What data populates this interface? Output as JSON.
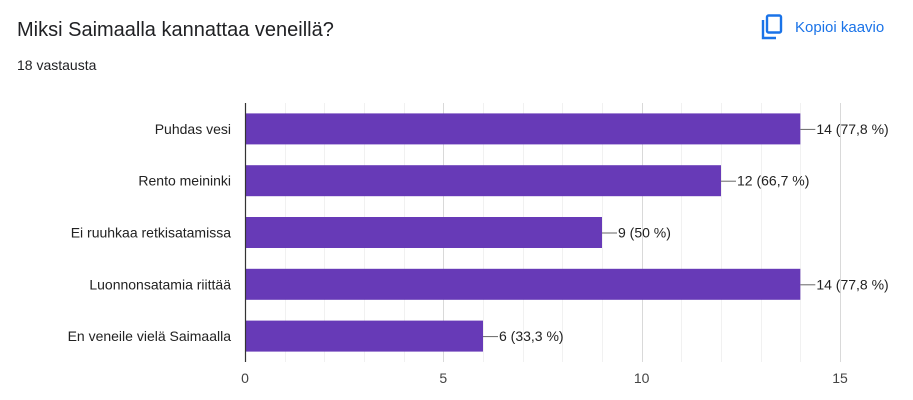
{
  "header": {
    "title": "Miksi Saimaalla kannattaa veneillä?",
    "responses": "18 vastausta",
    "copy_label": "Kopioi kaavio"
  },
  "colors": {
    "bar": "#673ab7",
    "accent": "#1a73e8",
    "grid": "#e6e6e6",
    "axis": "#333333"
  },
  "chart_data": {
    "type": "bar",
    "orientation": "horizontal",
    "categories": [
      "Puhdas vesi",
      "Rento meininki",
      "Ei ruuhkaa retkisatamissa",
      "Luonnonsatamia riittää",
      "En veneile vielä Saimaalla"
    ],
    "values": [
      14,
      12,
      9,
      14,
      6
    ],
    "data_labels": [
      "14 (77,8 %)",
      "12 (66,7 %)",
      "9 (50 %)",
      "14 (77,8 %)",
      "6 (33,3 %)"
    ],
    "xlim": [
      0,
      15
    ],
    "xticks": [
      0,
      5,
      10,
      15
    ],
    "grid": true,
    "title": "",
    "xlabel": "",
    "ylabel": ""
  }
}
